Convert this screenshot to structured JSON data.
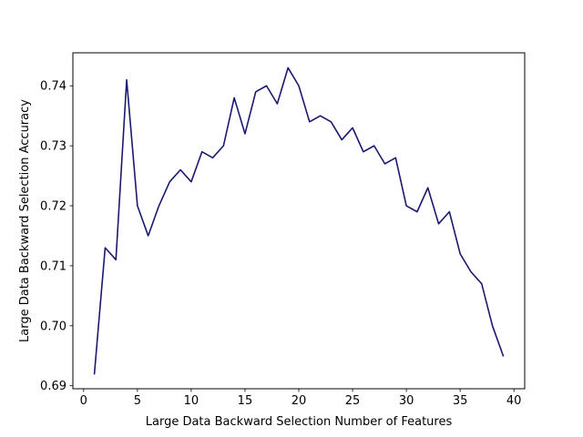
{
  "chart_data": {
    "type": "line",
    "title": "",
    "xlabel": "Large Data Backward Selection Number of Features",
    "ylabel": "Large Data Backward Selection Accuracy",
    "xlim": [
      -1,
      41
    ],
    "ylim": [
      0.6895,
      0.7455
    ],
    "xticks": [
      0,
      5,
      10,
      15,
      20,
      25,
      30,
      35,
      40
    ],
    "yticks": [
      0.69,
      0.7,
      0.71,
      0.72,
      0.73,
      0.74
    ],
    "ytick_labels": [
      "0.69",
      "0.70",
      "0.71",
      "0.72",
      "0.73",
      "0.74"
    ],
    "grid": false,
    "line_color": "#191970",
    "series": [
      {
        "name": "accuracy",
        "x": [
          1,
          2,
          3,
          4,
          5,
          6,
          7,
          8,
          9,
          10,
          11,
          12,
          13,
          14,
          15,
          16,
          17,
          18,
          19,
          20,
          21,
          22,
          23,
          24,
          25,
          26,
          27,
          28,
          29,
          30,
          31,
          32,
          33,
          34,
          35,
          36,
          37,
          38,
          39
        ],
        "y": [
          0.692,
          0.713,
          0.711,
          0.741,
          0.72,
          0.715,
          0.72,
          0.724,
          0.726,
          0.724,
          0.729,
          0.728,
          0.73,
          0.738,
          0.732,
          0.739,
          0.74,
          0.737,
          0.743,
          0.74,
          0.734,
          0.735,
          0.734,
          0.731,
          0.733,
          0.729,
          0.73,
          0.727,
          0.728,
          0.72,
          0.719,
          0.723,
          0.717,
          0.719,
          0.712,
          0.709,
          0.707,
          0.7,
          0.695
        ]
      }
    ]
  }
}
